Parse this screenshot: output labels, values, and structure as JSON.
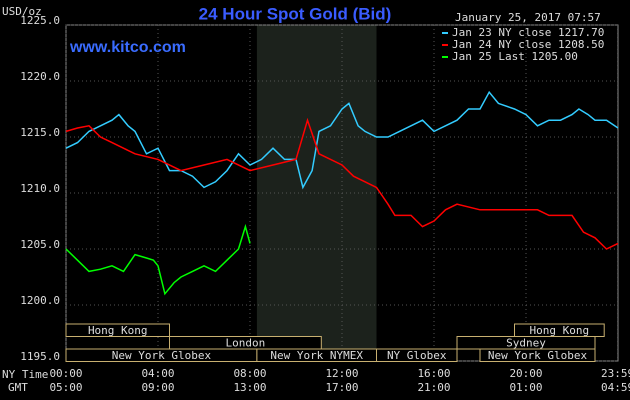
{
  "chart_data": {
    "type": "line",
    "title": "24 Hour Spot Gold (Bid)",
    "subtitle": "January 25, 2017 07:57",
    "site": "www.kitco.com",
    "ylabel": "USD/oz",
    "x_row_labels": [
      "NY Time",
      "GMT"
    ],
    "xlim": [
      0,
      24
    ],
    "ylim": [
      1195,
      1225
    ],
    "yticks": [
      {
        "value": 1195,
        "label": "1195.0"
      },
      {
        "value": 1200,
        "label": "1200.0"
      },
      {
        "value": 1205,
        "label": "1205.0"
      },
      {
        "value": 1210,
        "label": "1210.0"
      },
      {
        "value": 1215,
        "label": "1215.0"
      },
      {
        "value": 1220,
        "label": "1220.0"
      },
      {
        "value": 1225,
        "label": "1225.0"
      }
    ],
    "xticks": [
      {
        "value": 0,
        "label": "00:00"
      },
      {
        "value": 4,
        "label": "04:00"
      },
      {
        "value": 8,
        "label": "08:00"
      },
      {
        "value": 12,
        "label": "12:00"
      },
      {
        "value": 16,
        "label": "16:00"
      },
      {
        "value": 20,
        "label": "20:00"
      },
      {
        "value": 23.98,
        "label": "23:59"
      }
    ],
    "gmt_labels": [
      "05:00",
      "09:00",
      "13:00",
      "17:00",
      "21:00",
      "01:00",
      "04:59"
    ],
    "grid": true,
    "sessions": [
      {
        "name": "Hong Kong",
        "start": 0,
        "end": 4.5,
        "row": 0
      },
      {
        "name": "London",
        "start": 4.5,
        "end": 11.1,
        "row": 1
      },
      {
        "name": "New York Globex",
        "start": 0,
        "end": 8.3,
        "row": 2
      },
      {
        "name": "New York NYMEX",
        "start": 8.3,
        "end": 13.5,
        "row": 2,
        "highlight": true
      },
      {
        "name": "NY Globex",
        "start": 13.5,
        "end": 17,
        "row": 2
      },
      {
        "name": "Sydney",
        "start": 17,
        "end": 23,
        "row": 1
      },
      {
        "name": "Hong Kong",
        "start": 19.5,
        "end": 23.4,
        "row": 0
      },
      {
        "name": "New York Globex",
        "start": 18,
        "end": 23,
        "row": 2
      }
    ],
    "series": [
      {
        "name": "Jan 23 NY close 1217.70",
        "color": "#33ccff",
        "x": [
          0,
          0.5,
          1,
          1.5,
          2,
          2.3,
          2.7,
          3,
          3.5,
          4,
          4.5,
          5,
          5.5,
          6,
          6.5,
          7,
          7.5,
          8,
          8.5,
          9,
          9.5,
          10,
          10.3,
          10.7,
          11,
          11.5,
          12,
          12.3,
          12.7,
          13,
          13.5,
          14,
          14.5,
          15,
          15.5,
          16,
          16.5,
          17,
          17.5,
          18,
          18.4,
          18.8,
          19.5,
          20,
          20.5,
          21,
          21.5,
          22,
          22.3,
          22.7,
          23,
          23.5,
          24
        ],
        "values": [
          1214,
          1214.5,
          1215.5,
          1216,
          1216.5,
          1217,
          1216,
          1215.5,
          1213.5,
          1214,
          1212,
          1212,
          1211.5,
          1210.5,
          1211,
          1212,
          1213.5,
          1212.5,
          1213,
          1214,
          1213,
          1213,
          1210.5,
          1212,
          1215.5,
          1216,
          1217.5,
          1218,
          1216,
          1215.5,
          1215,
          1215,
          1215.5,
          1216,
          1216.5,
          1215.5,
          1216,
          1216.5,
          1217.5,
          1217.5,
          1219,
          1218,
          1217.5,
          1217,
          1216,
          1216.5,
          1216.5,
          1217,
          1217.5,
          1217,
          1216.5,
          1216.5,
          1215.8
        ]
      },
      {
        "name": "Jan 24 NY close 1208.50",
        "color": "#ff0000",
        "x": [
          0,
          0.5,
          1,
          1.5,
          2,
          2.5,
          3,
          4,
          5,
          6,
          7,
          8,
          9,
          10,
          10.5,
          11,
          12,
          12.5,
          13,
          13.5,
          14,
          14.3,
          15,
          15.5,
          16,
          16.5,
          17,
          18,
          19,
          20,
          20.5,
          21,
          22,
          22.5,
          23,
          23.5,
          24
        ],
        "values": [
          1215.5,
          1215.8,
          1216,
          1215,
          1214.5,
          1214,
          1213.5,
          1213,
          1212,
          1212.5,
          1213,
          1212,
          1212.5,
          1213,
          1216.5,
          1213.5,
          1212.5,
          1211.5,
          1211,
          1210.5,
          1209,
          1208,
          1208,
          1207,
          1207.5,
          1208.5,
          1209,
          1208.5,
          1208.5,
          1208.5,
          1208.5,
          1208,
          1208,
          1206.5,
          1206,
          1205,
          1205.5
        ]
      },
      {
        "name": "Jan 25 Last 1205.00",
        "color": "#00ff00",
        "x": [
          0,
          0.5,
          1,
          1.5,
          2,
          2.5,
          3,
          3.5,
          3.8,
          4,
          4.3,
          4.7,
          5,
          5.5,
          6,
          6.5,
          7,
          7.5,
          7.8,
          8
        ],
        "values": [
          1205,
          1204,
          1203,
          1203.2,
          1203.5,
          1203,
          1204.5,
          1204.2,
          1204,
          1203.5,
          1201,
          1202,
          1202.5,
          1203,
          1203.5,
          1203,
          1204,
          1205,
          1207,
          1205.5
        ]
      }
    ]
  }
}
